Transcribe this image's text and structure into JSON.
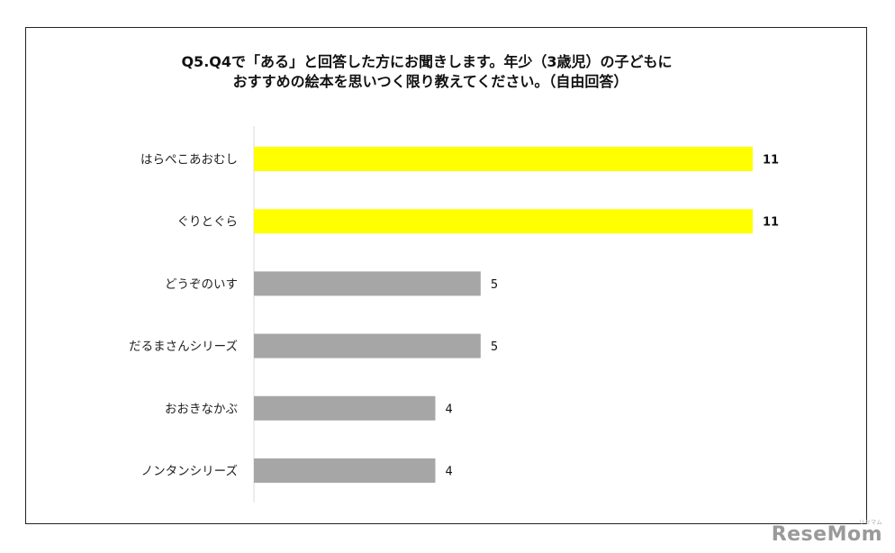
{
  "title": {
    "line1": "Q5.Q4で「ある」と回答した方にお聞きします。年少（3歳児）の子どもに",
    "line2": "おすすめの絵本を思いつく限り教えてください。（自由回答）"
  },
  "chart_data": {
    "type": "bar",
    "orientation": "horizontal",
    "categories": [
      "はらぺこあおむし",
      "ぐりとぐら",
      "どうぞのいす",
      "だるまさんシリーズ",
      "おおきなかぶ",
      "ノンタンシリーズ"
    ],
    "values": [
      11,
      11,
      5,
      5,
      4,
      4
    ],
    "value_labels": [
      "11",
      "11",
      "5",
      "5",
      "4",
      "4"
    ],
    "highlighted": [
      true,
      true,
      false,
      false,
      false,
      false
    ],
    "xlim": [
      0,
      11
    ],
    "grid": false,
    "legend": "none",
    "colors": {
      "highlight": "#ffff00",
      "default": "#a6a6a6"
    }
  },
  "watermark": {
    "text": "ReseMom",
    "sub": "リセマム"
  }
}
